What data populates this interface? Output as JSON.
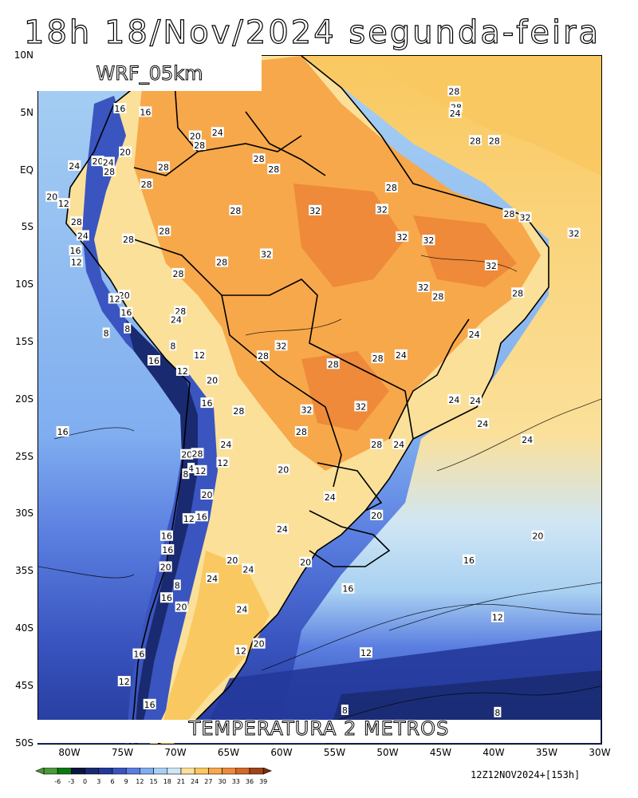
{
  "title": "18h 18/Nov/2024 segunda-feira",
  "model": "WRF_05km",
  "variable": "TEMPERATURA 2 METROS",
  "run_info": "12Z12NOV2024+[153h]",
  "lat_labels": [
    "10N",
    "5N",
    "EQ",
    "5S",
    "10S",
    "15S",
    "20S",
    "25S",
    "30S",
    "35S",
    "40S",
    "45S",
    "50S"
  ],
  "lon_labels": [
    "80W",
    "75W",
    "70W",
    "65W",
    "60W",
    "55W",
    "50W",
    "45W",
    "40W",
    "35W",
    "30W"
  ],
  "colorbar": {
    "labels": [
      "-6",
      "-3",
      "0",
      "3",
      "6",
      "9",
      "12",
      "15",
      "18",
      "21",
      "24",
      "27",
      "30",
      "33",
      "36",
      "39"
    ],
    "colors": [
      "#4a9a3a",
      "#0a7a10",
      "#0a1640",
      "#1a2a70",
      "#23399a",
      "#3a55c0",
      "#5a7ee0",
      "#80aef0",
      "#a8d0f2",
      "#cfe6f4",
      "#fbe09a",
      "#f9c860",
      "#f7a84a",
      "#ee8a3a",
      "#d4682a",
      "#a04418",
      "#7a2e0a"
    ]
  },
  "contour_labels": [
    {
      "text": "28",
      "lon": -43.8,
      "lat": 6.9
    },
    {
      "text": "28",
      "lon": -43.6,
      "lat": 5.5
    },
    {
      "text": "24",
      "lon": -43.7,
      "lat": 5.0
    },
    {
      "text": "16",
      "lon": -75.3,
      "lat": 5.4
    },
    {
      "text": "16",
      "lon": -72.9,
      "lat": 5.1
    },
    {
      "text": "20",
      "lon": -74.8,
      "lat": 1.6
    },
    {
      "text": "24",
      "lon": -79.6,
      "lat": 0.4
    },
    {
      "text": "20",
      "lon": -77.4,
      "lat": 0.8
    },
    {
      "text": "24",
      "lon": -76.4,
      "lat": 0.7
    },
    {
      "text": "28",
      "lon": -76.3,
      "lat": -0.1
    },
    {
      "text": "28",
      "lon": -71.2,
      "lat": 0.3
    },
    {
      "text": "20",
      "lon": -68.2,
      "lat": 3.0
    },
    {
      "text": "24",
      "lon": -66.1,
      "lat": 3.3
    },
    {
      "text": "28",
      "lon": -67.8,
      "lat": 2.2
    },
    {
      "text": "28",
      "lon": -62.2,
      "lat": 1.0
    },
    {
      "text": "28",
      "lon": -60.8,
      "lat": 0.1
    },
    {
      "text": "28",
      "lon": -41.8,
      "lat": 2.6
    },
    {
      "text": "28",
      "lon": -40.0,
      "lat": 2.6
    },
    {
      "text": "28",
      "lon": -49.7,
      "lat": -1.5
    },
    {
      "text": "28",
      "lon": -72.8,
      "lat": -1.2
    },
    {
      "text": "28",
      "lon": -64.4,
      "lat": -3.5
    },
    {
      "text": "32",
      "lon": -56.9,
      "lat": -3.5
    },
    {
      "text": "32",
      "lon": -50.6,
      "lat": -3.4
    },
    {
      "text": "28",
      "lon": -38.6,
      "lat": -3.8
    },
    {
      "text": "32",
      "lon": -37.1,
      "lat": -4.1
    },
    {
      "text": "32",
      "lon": -32.5,
      "lat": -5.5
    },
    {
      "text": "20",
      "lon": -81.7,
      "lat": -2.3
    },
    {
      "text": "12",
      "lon": -80.6,
      "lat": -2.9
    },
    {
      "text": "28",
      "lon": -79.4,
      "lat": -4.5
    },
    {
      "text": "28",
      "lon": -71.1,
      "lat": -5.3
    },
    {
      "text": "24",
      "lon": -78.8,
      "lat": -5.7
    },
    {
      "text": "28",
      "lon": -74.5,
      "lat": -6.0
    },
    {
      "text": "32",
      "lon": -48.7,
      "lat": -5.8
    },
    {
      "text": "32",
      "lon": -46.2,
      "lat": -6.1
    },
    {
      "text": "16",
      "lon": -79.5,
      "lat": -7.0
    },
    {
      "text": "32",
      "lon": -61.5,
      "lat": -7.3
    },
    {
      "text": "28",
      "lon": -65.7,
      "lat": -8.0
    },
    {
      "text": "12",
      "lon": -79.4,
      "lat": -8.0
    },
    {
      "text": "32",
      "lon": -40.3,
      "lat": -8.3
    },
    {
      "text": "28",
      "lon": -69.8,
      "lat": -9.0
    },
    {
      "text": "32",
      "lon": -46.7,
      "lat": -10.2
    },
    {
      "text": "28",
      "lon": -45.3,
      "lat": -11.0
    },
    {
      "text": "28",
      "lon": -37.8,
      "lat": -10.7
    },
    {
      "text": "20",
      "lon": -74.9,
      "lat": -10.9
    },
    {
      "text": "12",
      "lon": -75.8,
      "lat": -11.2
    },
    {
      "text": "28",
      "lon": -69.6,
      "lat": -12.3
    },
    {
      "text": "16",
      "lon": -74.7,
      "lat": -12.4
    },
    {
      "text": "24",
      "lon": -70.0,
      "lat": -13.0
    },
    {
      "text": "8",
      "lon": -74.6,
      "lat": -13.8
    },
    {
      "text": "8",
      "lon": -76.6,
      "lat": -14.2
    },
    {
      "text": "24",
      "lon": -41.9,
      "lat": -14.3
    },
    {
      "text": "8",
      "lon": -70.3,
      "lat": -15.3
    },
    {
      "text": "32",
      "lon": -60.1,
      "lat": -15.3
    },
    {
      "text": "12",
      "lon": -67.8,
      "lat": -16.1
    },
    {
      "text": "28",
      "lon": -61.8,
      "lat": -16.2
    },
    {
      "text": "24",
      "lon": -48.8,
      "lat": -16.1
    },
    {
      "text": "28",
      "lon": -51.0,
      "lat": -16.4
    },
    {
      "text": "16",
      "lon": -72.1,
      "lat": -16.6
    },
    {
      "text": "28",
      "lon": -55.2,
      "lat": -16.9
    },
    {
      "text": "12",
      "lon": -69.4,
      "lat": -17.5
    },
    {
      "text": "20",
      "lon": -66.6,
      "lat": -18.3
    },
    {
      "text": "24",
      "lon": -43.8,
      "lat": -20.0
    },
    {
      "text": "24",
      "lon": -41.8,
      "lat": -20.1
    },
    {
      "text": "16",
      "lon": -67.1,
      "lat": -20.3
    },
    {
      "text": "32",
      "lon": -52.6,
      "lat": -20.6
    },
    {
      "text": "28",
      "lon": -64.1,
      "lat": -21.0
    },
    {
      "text": "32",
      "lon": -57.7,
      "lat": -20.9
    },
    {
      "text": "24",
      "lon": -41.1,
      "lat": -22.1
    },
    {
      "text": "16",
      "lon": -80.7,
      "lat": -22.8
    },
    {
      "text": "28",
      "lon": -58.2,
      "lat": -22.8
    },
    {
      "text": "24",
      "lon": -36.9,
      "lat": -23.5
    },
    {
      "text": "24",
      "lon": -65.3,
      "lat": -23.9
    },
    {
      "text": "28",
      "lon": -51.1,
      "lat": -23.9
    },
    {
      "text": "24",
      "lon": -49.0,
      "lat": -23.9
    },
    {
      "text": "20",
      "lon": -69.0,
      "lat": -24.8
    },
    {
      "text": "28",
      "lon": -68.0,
      "lat": -24.7
    },
    {
      "text": "12",
      "lon": -65.6,
      "lat": -25.5
    },
    {
      "text": "4",
      "lon": -68.6,
      "lat": -26.0
    },
    {
      "text": "12",
      "lon": -67.7,
      "lat": -26.2
    },
    {
      "text": "8",
      "lon": -69.1,
      "lat": -26.5
    },
    {
      "text": "20",
      "lon": -59.9,
      "lat": -26.1
    },
    {
      "text": "20",
      "lon": -67.1,
      "lat": -28.3
    },
    {
      "text": "24",
      "lon": -55.5,
      "lat": -28.5
    },
    {
      "text": "16",
      "lon": -67.6,
      "lat": -30.2
    },
    {
      "text": "12",
      "lon": -68.8,
      "lat": -30.4
    },
    {
      "text": "20",
      "lon": -51.1,
      "lat": -30.1
    },
    {
      "text": "24",
      "lon": -60.0,
      "lat": -31.3
    },
    {
      "text": "20",
      "lon": -35.9,
      "lat": -31.9
    },
    {
      "text": "16",
      "lon": -70.9,
      "lat": -31.9
    },
    {
      "text": "16",
      "lon": -70.8,
      "lat": -33.1
    },
    {
      "text": "20",
      "lon": -64.7,
      "lat": -34.0
    },
    {
      "text": "20",
      "lon": -57.8,
      "lat": -34.2
    },
    {
      "text": "16",
      "lon": -42.4,
      "lat": -34.0
    },
    {
      "text": "20",
      "lon": -71.0,
      "lat": -34.6
    },
    {
      "text": "24",
      "lon": -63.2,
      "lat": -34.8
    },
    {
      "text": "24",
      "lon": -66.6,
      "lat": -35.6
    },
    {
      "text": "8",
      "lon": -69.9,
      "lat": -36.2
    },
    {
      "text": "16",
      "lon": -53.8,
      "lat": -36.5
    },
    {
      "text": "16",
      "lon": -70.9,
      "lat": -37.3
    },
    {
      "text": "20",
      "lon": -69.5,
      "lat": -38.1
    },
    {
      "text": "24",
      "lon": -63.8,
      "lat": -38.3
    },
    {
      "text": "12",
      "lon": -39.7,
      "lat": -39.0
    },
    {
      "text": "20",
      "lon": -62.2,
      "lat": -41.3
    },
    {
      "text": "12",
      "lon": -63.9,
      "lat": -41.9
    },
    {
      "text": "16",
      "lon": -73.5,
      "lat": -42.2
    },
    {
      "text": "12",
      "lon": -52.1,
      "lat": -42.1
    },
    {
      "text": "12",
      "lon": -74.9,
      "lat": -44.6
    },
    {
      "text": "16",
      "lon": -72.5,
      "lat": -46.6
    },
    {
      "text": "8",
      "lon": -54.1,
      "lat": -47.1
    },
    {
      "text": "8",
      "lon": -39.7,
      "lat": -47.3
    }
  ]
}
